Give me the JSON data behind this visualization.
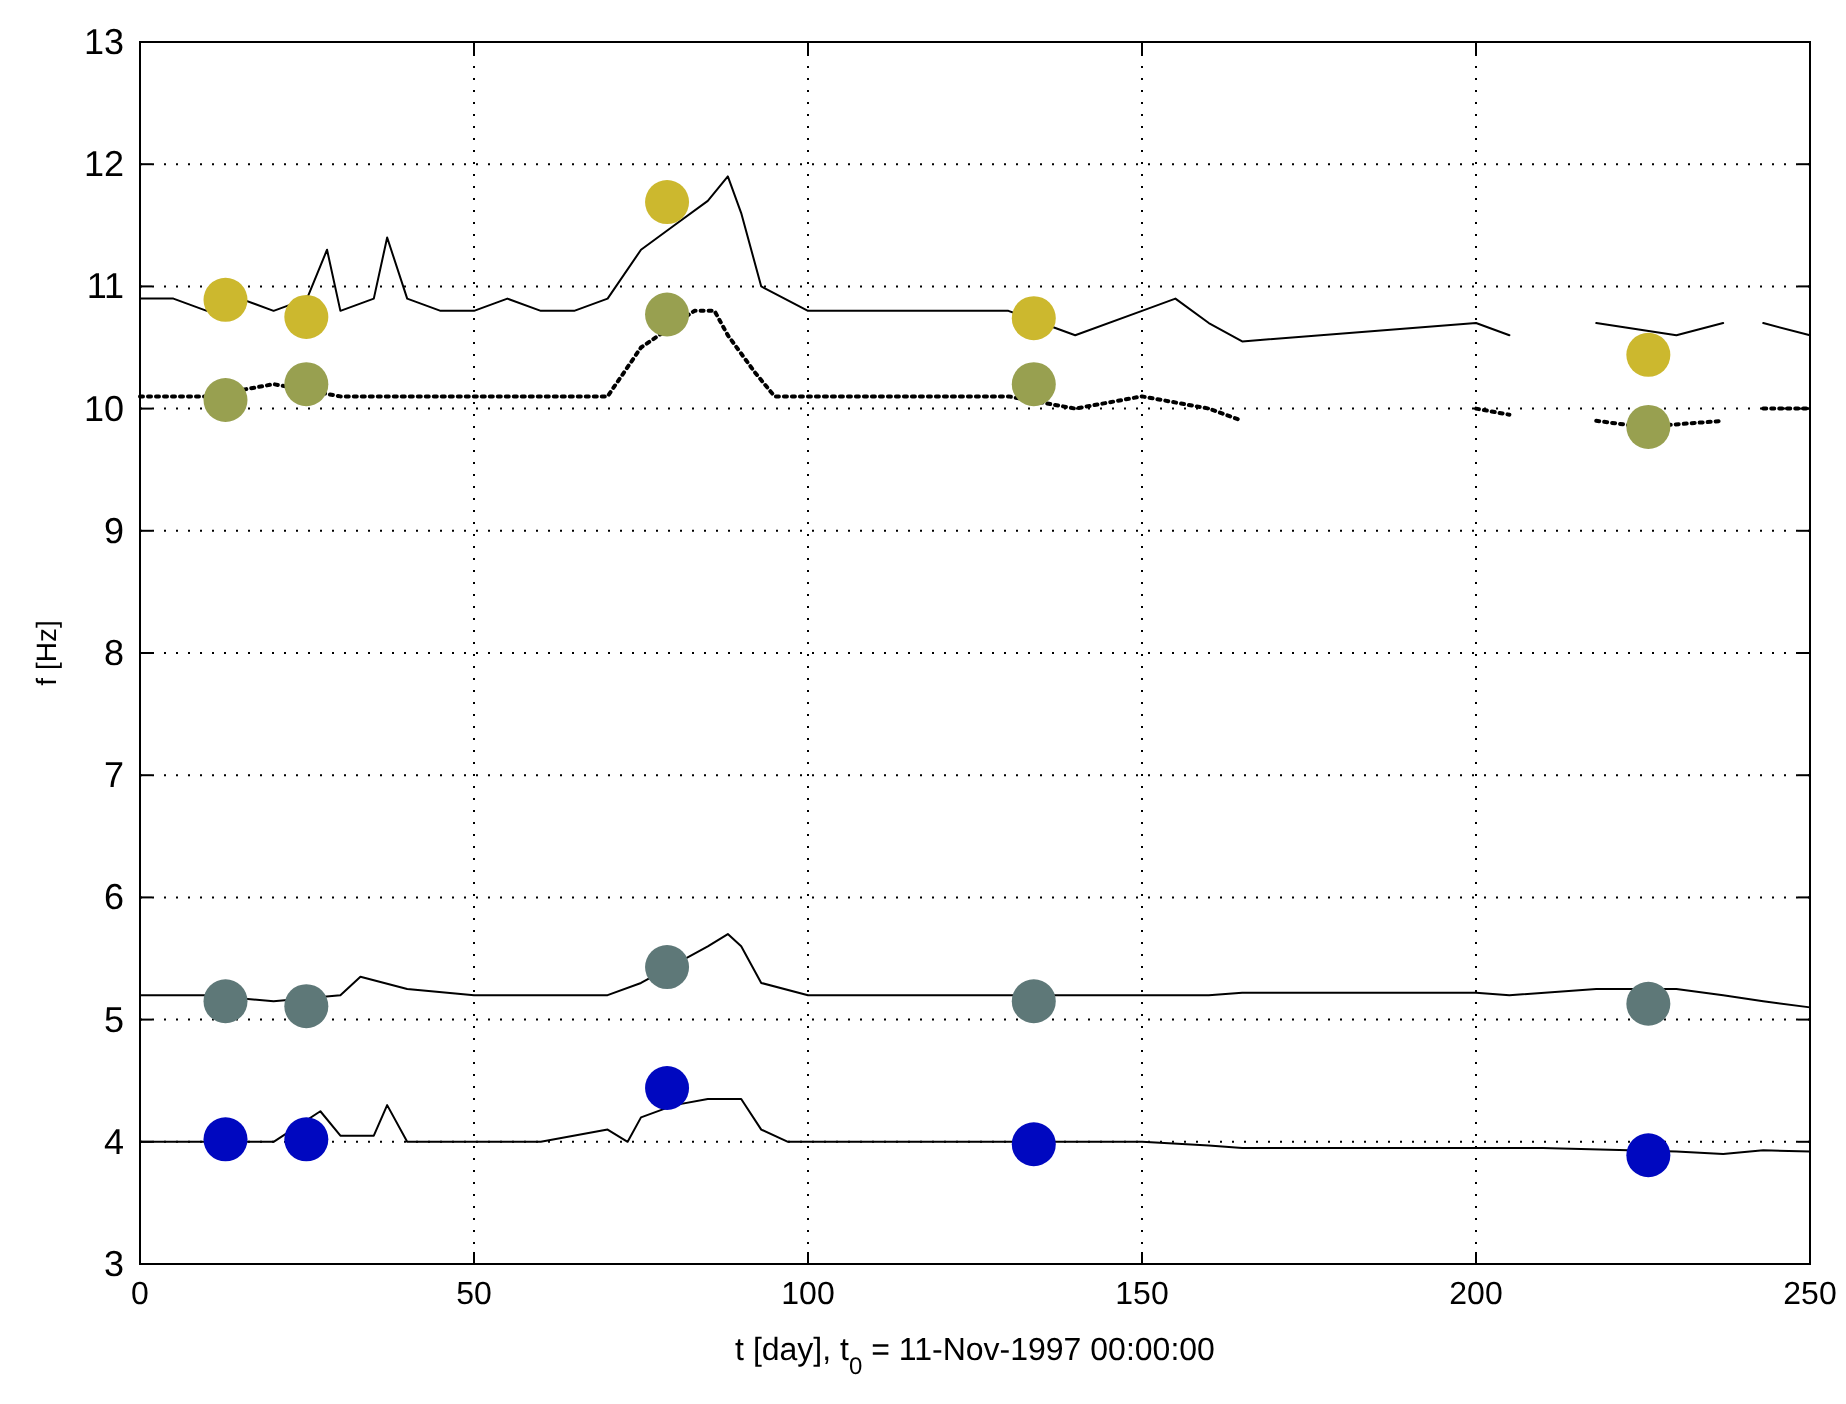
{
  "chart_data": {
    "type": "line",
    "xlabel": "t [day], t$_{0}$ = 11-Nov-1997 00:00:00",
    "ylabel": "f [Hz]",
    "xlim": [
      0,
      250
    ],
    "xticks": [
      0,
      50,
      100,
      150,
      200,
      250
    ],
    "ylim": [
      3,
      13
    ],
    "yticks": [
      3,
      4,
      5,
      6,
      7,
      8,
      9,
      10,
      11,
      12,
      13
    ],
    "grid": true,
    "series": [
      {
        "color": "#000000",
        "line_style": "solid",
        "x": [
          0,
          5,
          10,
          15,
          20,
          25,
          28,
          30,
          35,
          37,
          40,
          45,
          50,
          55,
          60,
          65,
          70,
          75,
          80,
          85,
          88,
          90,
          93,
          100,
          110,
          120,
          130,
          140,
          150,
          155,
          160,
          165,
          200,
          205,
          210,
          218,
          230,
          237,
          240,
          243,
          250
        ],
        "values": [
          10.9,
          10.9,
          10.8,
          10.9,
          10.8,
          10.9,
          11.3,
          10.8,
          10.9,
          11.4,
          10.9,
          10.8,
          10.8,
          10.9,
          10.8,
          10.8,
          10.9,
          11.3,
          11.5,
          11.7,
          11.9,
          11.6,
          11.0,
          10.8,
          10.8,
          10.8,
          10.8,
          10.6,
          10.8,
          10.9,
          10.7,
          10.55,
          10.7,
          10.6,
          null,
          10.7,
          10.6,
          10.7,
          null,
          10.7,
          10.6
        ]
      },
      {
        "color": "#000000",
        "line_style": "dotted",
        "x": [
          0,
          10,
          20,
          30,
          40,
          50,
          60,
          70,
          75,
          83,
          86,
          88,
          92,
          95,
          100,
          120,
          130,
          140,
          150,
          160,
          165,
          180,
          200,
          205,
          210,
          218,
          225,
          237,
          240,
          243,
          250
        ],
        "values": [
          10.1,
          10.1,
          10.2,
          10.1,
          10.1,
          10.1,
          10.1,
          10.1,
          10.5,
          10.8,
          10.8,
          10.6,
          10.3,
          10.1,
          10.1,
          10.1,
          10.1,
          10.0,
          10.1,
          10.0,
          9.9,
          null,
          10.0,
          9.95,
          null,
          9.9,
          9.85,
          9.9,
          null,
          10.0,
          10.0
        ]
      },
      {
        "color": "#000000",
        "line_style": "solid",
        "x": [
          0,
          10,
          20,
          30,
          33,
          40,
          50,
          60,
          70,
          75,
          80,
          85,
          88,
          90,
          93,
          100,
          120,
          140,
          160,
          165,
          200,
          205,
          218,
          230,
          237,
          243,
          250
        ],
        "values": [
          5.2,
          5.2,
          5.15,
          5.2,
          5.35,
          5.25,
          5.2,
          5.2,
          5.2,
          5.3,
          5.45,
          5.6,
          5.7,
          5.6,
          5.3,
          5.2,
          5.2,
          5.2,
          5.2,
          5.22,
          5.22,
          5.2,
          5.25,
          5.25,
          5.2,
          5.15,
          5.1
        ]
      },
      {
        "color": "#000000",
        "line_style": "solid",
        "x": [
          0,
          10,
          20,
          27,
          30,
          35,
          37,
          40,
          50,
          60,
          70,
          73,
          75,
          80,
          85,
          90,
          93,
          97,
          110,
          130,
          150,
          160,
          165,
          200,
          210,
          230,
          237,
          243,
          250
        ],
        "values": [
          4.0,
          4.0,
          4.0,
          4.25,
          4.05,
          4.05,
          4.3,
          4.0,
          4.0,
          4.0,
          4.1,
          4.0,
          4.2,
          4.3,
          4.35,
          4.35,
          4.1,
          4.0,
          4.0,
          4.0,
          4.0,
          3.97,
          3.95,
          3.95,
          3.95,
          3.92,
          3.9,
          3.93,
          3.92
        ]
      },
      {
        "type": "scatter",
        "marker": "circle",
        "color": "#ccb82e",
        "x": [
          12.8,
          24.9,
          78.9,
          133.8,
          225.8
        ],
        "values": [
          10.89,
          10.75,
          11.69,
          10.74,
          10.44
        ]
      },
      {
        "type": "scatter",
        "marker": "circle",
        "color": "#98a050",
        "x": [
          12.8,
          24.9,
          78.9,
          133.8,
          225.8
        ],
        "values": [
          10.07,
          10.2,
          10.77,
          10.2,
          9.85
        ]
      },
      {
        "type": "scatter",
        "marker": "circle",
        "color": "#5e7878",
        "x": [
          12.8,
          24.9,
          78.9,
          133.8,
          225.8
        ],
        "values": [
          5.15,
          5.11,
          5.43,
          5.15,
          5.13
        ]
      },
      {
        "type": "scatter",
        "marker": "circle",
        "color": "#0008c0",
        "x": [
          12.8,
          24.9,
          78.9,
          133.8,
          225.8
        ],
        "values": [
          4.02,
          4.02,
          4.44,
          3.98,
          3.89
        ]
      }
    ]
  }
}
